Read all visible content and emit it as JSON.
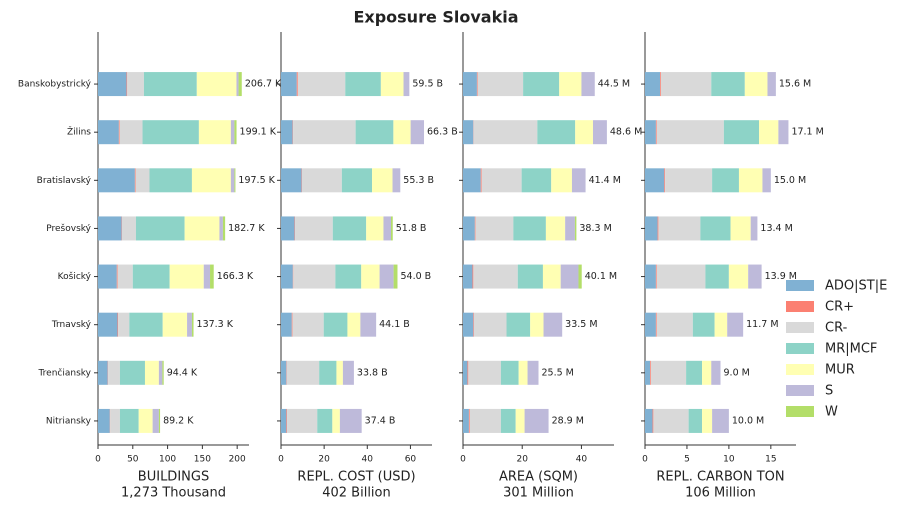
{
  "title": "Exposure Slovakia",
  "chart_data": [
    {
      "type": "barh",
      "xlabel": "BUILDINGS",
      "subtitle": "1,273 Thousand",
      "categories": [
        "Banskobystrický",
        "Žilins",
        "Bratislavský",
        "Prešovský",
        "Košický",
        "Trnavský",
        "Trenčiansky",
        "Nitriansky"
      ],
      "series": [
        {
          "name": "ADO|ST|E",
          "color": "#80b1d3",
          "values": [
            41,
            30,
            53,
            34,
            27,
            28,
            14,
            17
          ]
        },
        {
          "name": "CR+",
          "color": "#fb8072",
          "values": [
            1,
            1,
            1,
            0.5,
            1,
            1,
            0.5,
            0.5
          ]
        },
        {
          "name": "CR-",
          "color": "#d9d9d9",
          "values": [
            24,
            33,
            20,
            20,
            22,
            16,
            17,
            14
          ]
        },
        {
          "name": "MR|MCF",
          "color": "#8dd3c7",
          "values": [
            76,
            81,
            61,
            70,
            53,
            48,
            36,
            27
          ]
        },
        {
          "name": "MUR",
          "color": "#ffffb3",
          "values": [
            57,
            46,
            56,
            50,
            49,
            35,
            20,
            20
          ]
        },
        {
          "name": "S",
          "color": "#bebada",
          "values": [
            3,
            5,
            5,
            5,
            9,
            7,
            5,
            9
          ]
        },
        {
          "name": "W",
          "color": "#b3de69",
          "values": [
            4.6,
            3.1,
            1.5,
            3.2,
            5.3,
            2.3,
            1.9,
            1.7
          ]
        }
      ],
      "totals": [
        206.7,
        199.1,
        197.5,
        182.7,
        166.3,
        137.3,
        94.4,
        89.2
      ],
      "total_labels": [
        "206.7 K",
        "199.1 K",
        "197.5 K",
        "182.7 K",
        "166.3 K",
        "137.3 K",
        "94.4 K",
        "89.2 K"
      ],
      "xlim": [
        0,
        217
      ],
      "xticks": [
        0,
        50,
        100,
        150,
        200
      ]
    },
    {
      "type": "barh",
      "xlabel": "REPL. COST (USD)",
      "subtitle": "402 Billion",
      "series": [
        {
          "values": [
            7.3,
            5.4,
            9.5,
            6.3,
            5.5,
            5,
            2.5,
            2.5
          ]
        },
        {
          "values": [
            0.5,
            0.2,
            0.2,
            0.2,
            0.2,
            0.3,
            0.2,
            0.3
          ]
        },
        {
          "values": [
            22,
            29,
            18.5,
            17.5,
            19.5,
            14.5,
            15,
            14
          ]
        },
        {
          "values": [
            16.5,
            17.5,
            14,
            15.5,
            12,
            11,
            8,
            7
          ]
        },
        {
          "values": [
            10.5,
            8,
            9.5,
            8,
            8.5,
            6,
            3,
            3.5
          ]
        },
        {
          "values": [
            2.7,
            6.2,
            3.6,
            3.5,
            6.5,
            7.3,
            5.1,
            10.1
          ]
        },
        {
          "values": [
            0,
            0,
            0,
            0.8,
            1.8,
            0,
            0,
            0
          ]
        }
      ],
      "totals": [
        59.5,
        66.3,
        55.3,
        51.8,
        54.0,
        44.1,
        33.8,
        37.4
      ],
      "total_labels": [
        "59.5 B",
        "66.3 B",
        "55.3 B",
        "51.8 B",
        "54.0 B",
        "44.1 B",
        "33.8 B",
        "37.4 B"
      ],
      "xlim": [
        0,
        70
      ],
      "xticks": [
        0,
        20,
        40,
        60
      ]
    },
    {
      "type": "barh",
      "xlabel": "AREA (SQM)",
      "subtitle": "301 Million",
      "series": [
        {
          "values": [
            4.7,
            3.5,
            6,
            4,
            3.2,
            3.5,
            1.5,
            2
          ]
        },
        {
          "values": [
            0.2,
            0.1,
            0.3,
            0.2,
            0.3,
            0.2,
            0.3,
            0.3
          ]
        },
        {
          "values": [
            15.4,
            21.5,
            13.5,
            12.8,
            15,
            11,
            11,
            10.5
          ]
        },
        {
          "values": [
            12.2,
            12.8,
            10,
            11,
            8.5,
            8,
            6,
            5
          ]
        },
        {
          "values": [
            7.5,
            6,
            7,
            6.5,
            6,
            4.5,
            3,
            3
          ]
        },
        {
          "values": [
            4.5,
            4.7,
            4.6,
            3.3,
            6,
            6.3,
            3.7,
            8.1
          ]
        },
        {
          "values": [
            0,
            0,
            0,
            0.5,
            1.1,
            0,
            0,
            0
          ]
        }
      ],
      "totals": [
        44.5,
        48.6,
        41.4,
        38.3,
        40.1,
        33.5,
        25.5,
        28.9
      ],
      "total_labels": [
        "44.5 M",
        "48.6 M",
        "41.4 M",
        "38.3 M",
        "40.1 M",
        "33.5 M",
        "25.5 M",
        "28.9 M"
      ],
      "xlim": [
        0,
        51
      ],
      "xticks": [
        0,
        20,
        40
      ]
    },
    {
      "type": "barh",
      "xlabel": "REPL. CARBON TON",
      "subtitle": "106 Million",
      "series": [
        {
          "values": [
            1.8,
            1.3,
            2.3,
            1.5,
            1.3,
            1.3,
            0.6,
            0.9
          ]
        },
        {
          "values": [
            0.1,
            0.1,
            0.1,
            0.1,
            0.1,
            0.1,
            0.1,
            0.1
          ]
        },
        {
          "values": [
            6,
            8,
            5.6,
            5,
            5.8,
            4.3,
            4.2,
            4.2
          ]
        },
        {
          "values": [
            4,
            4.2,
            3.2,
            3.6,
            2.8,
            2.6,
            1.9,
            1.6
          ]
        },
        {
          "values": [
            2.7,
            2.3,
            2.8,
            2.4,
            2.3,
            1.5,
            1.1,
            1.2
          ]
        },
        {
          "values": [
            1,
            1.2,
            1,
            0.8,
            1.6,
            1.9,
            1.1,
            2
          ]
        },
        {
          "values": [
            0,
            0,
            0,
            0,
            0,
            0,
            0,
            0
          ]
        }
      ],
      "totals": [
        15.6,
        17.1,
        15.0,
        13.4,
        13.9,
        11.7,
        9.0,
        10.0
      ],
      "total_labels": [
        "15.6 M",
        "17.1 M",
        "15.0 M",
        "13.4 M",
        "13.9 M",
        "11.7 M",
        "9.0 M",
        "10.0 M"
      ],
      "xlim": [
        0,
        18
      ],
      "xticks": [
        0,
        5,
        10,
        15
      ]
    }
  ]
}
